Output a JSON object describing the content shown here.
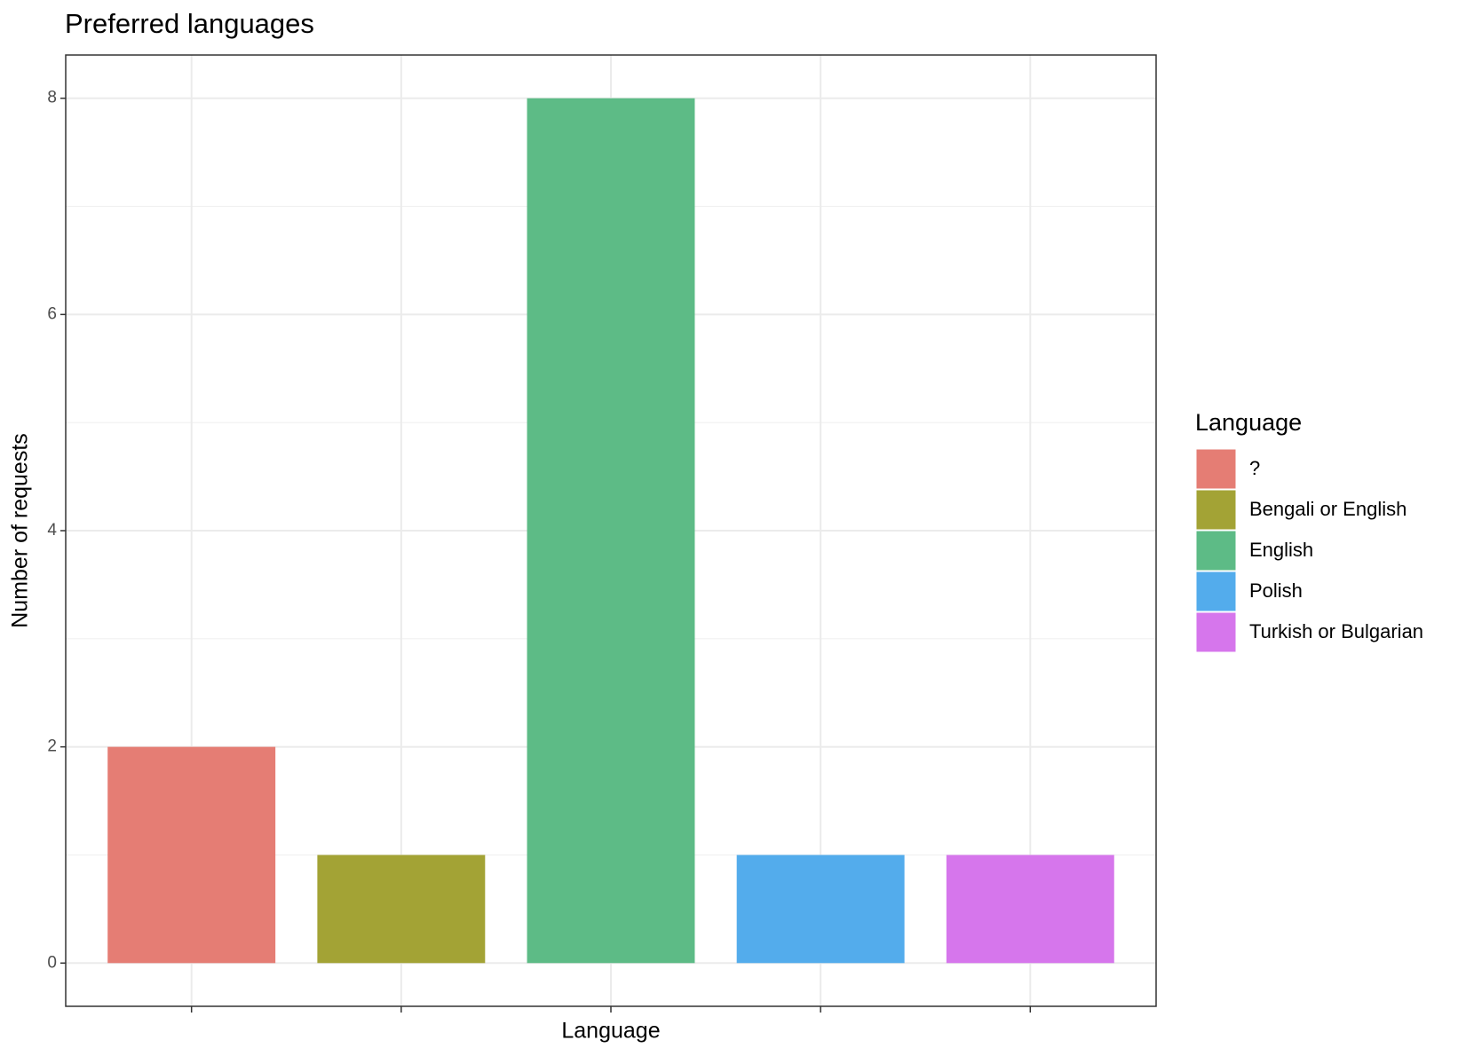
{
  "chart_data": {
    "type": "bar",
    "title": "Preferred languages",
    "x_label": "Language",
    "y_label": "Number of requests",
    "legend_title": "Language",
    "categories": [
      "?",
      "Bengali or English",
      "English",
      "Polish",
      "Turkish or Bulgarian"
    ],
    "values": [
      2,
      1,
      8,
      1,
      1
    ],
    "colors": [
      "#e57d74",
      "#a3a335",
      "#5dbb86",
      "#53acec",
      "#d676ec"
    ],
    "ylim": [
      -0.4,
      8.4
    ],
    "yticks": [
      0,
      2,
      4,
      6,
      8
    ],
    "grid": true,
    "legend": "right"
  }
}
